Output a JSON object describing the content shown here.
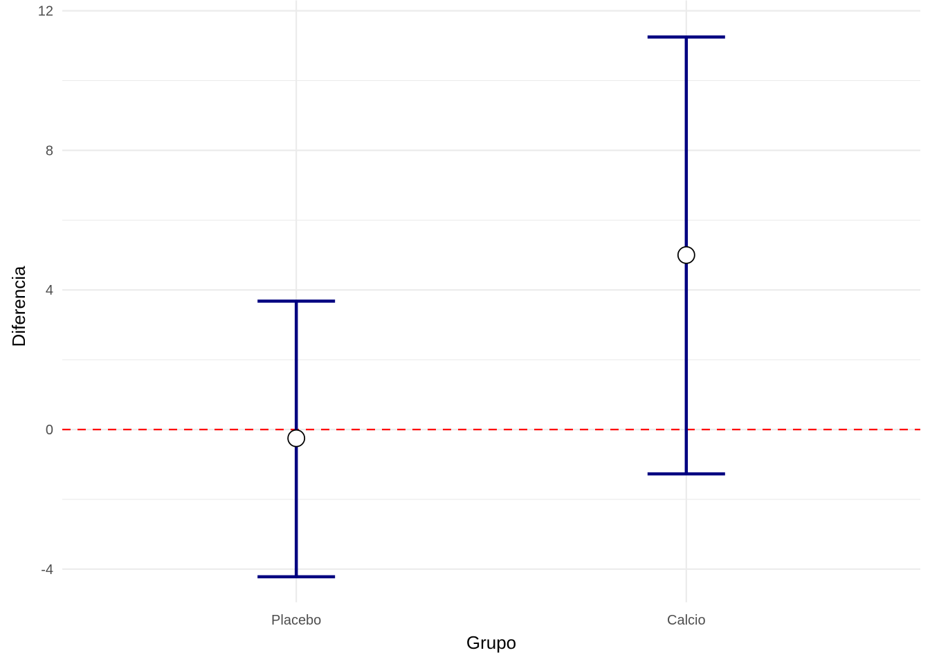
{
  "chart_data": {
    "type": "errorbar",
    "title": "",
    "xlabel": "Grupo",
    "ylabel": "Diferencia",
    "categories": [
      "Placebo",
      "Calcio"
    ],
    "series": [
      {
        "mean": [
          -0.25,
          5.0
        ],
        "lower": [
          -4.22,
          -1.27
        ],
        "upper": [
          3.68,
          11.25
        ]
      }
    ],
    "yticks": [
      -4,
      0,
      4,
      8,
      12
    ],
    "ytick_labels": [
      "-4",
      "0",
      "4",
      "8",
      "12"
    ],
    "ylim": [
      -4.95,
      12.3
    ],
    "reference_line": {
      "y": 0,
      "style": "dashed",
      "color": "#ff0000"
    },
    "grid": true,
    "colors": {
      "errorbar": "#000080",
      "point_fill": "#ffffff",
      "point_stroke": "#000000",
      "grid": "#ebebeb"
    }
  }
}
